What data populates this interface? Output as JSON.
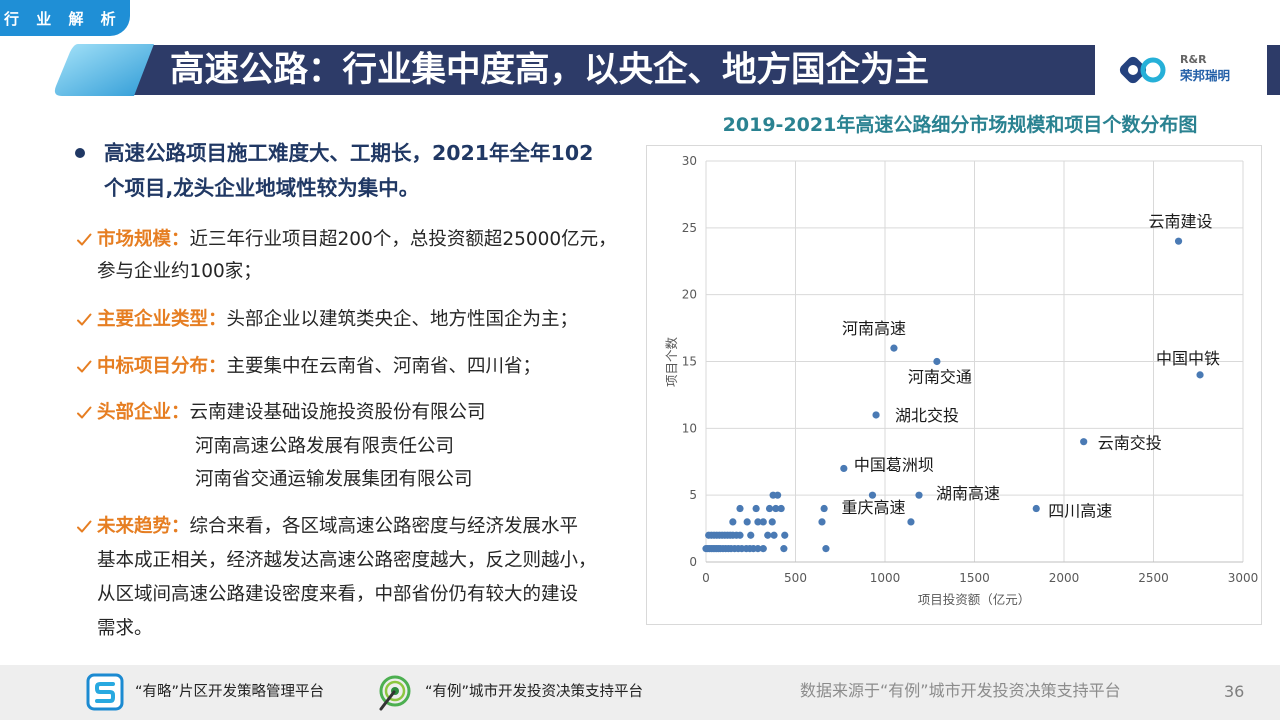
{
  "header": {
    "section_tag": "行 业 解 析",
    "title": "高速公路：行业集中度高，以央企、地方国企为主",
    "logo": {
      "en": "R&R",
      "cn": "荣邦瑞明",
      "icon": "rr-logo-icon"
    }
  },
  "summary": {
    "icon": "bullet-dot-icon",
    "lines": [
      "高速公路项目施工难度大、工期长，2021年全年102",
      "个项目,龙头企业地域性较为集中。"
    ]
  },
  "items": [
    {
      "icon": "check-icon",
      "label": "市场规模：",
      "lines": [
        "近三年行业项目超200个，总投资额超25000亿元，",
        "参与企业约100家；"
      ]
    },
    {
      "icon": "check-icon",
      "label": "主要企业类型：",
      "lines": [
        "头部企业以建筑类央企、地方性国企为主；"
      ]
    },
    {
      "icon": "check-icon",
      "label": "中标项目分布：",
      "lines": [
        "主要集中在云南省、河南省、四川省；"
      ]
    },
    {
      "icon": "check-icon",
      "label": "头部企业：",
      "lines": [
        "云南建设基础设施投资股份有限公司",
        "河南高速公路发展有限责任公司",
        "河南省交通运输发展集团有限公司"
      ]
    },
    {
      "icon": "check-icon",
      "label": "未来趋势：",
      "lines": [
        "综合来看，各区域高速公路密度与经济发展水平",
        "基本成正相关，经济越发达高速公路密度越大，反之则越小，",
        "从区域间高速公路建设密度来看，中部省份仍有较大的建设",
        "需求。"
      ]
    }
  ],
  "chart_data": {
    "type": "scatter",
    "title": "2019-2021年高速公路细分市场规模和项目个数分布图",
    "xlabel": "项目投资额（亿元）",
    "ylabel": "项目个数",
    "xlim": [
      0,
      3000
    ],
    "ylim": [
      0,
      30
    ],
    "xticks": [
      0,
      500,
      1000,
      1500,
      2000,
      2500,
      3000
    ],
    "yticks": [
      0,
      5,
      10,
      15,
      20,
      25,
      30
    ],
    "grid": true,
    "marker_color": "#4a7ab4",
    "points": [
      {
        "x": 2640,
        "y": 24,
        "label": "云南建设"
      },
      {
        "x": 1050,
        "y": 16,
        "label": "河南高速"
      },
      {
        "x": 1290,
        "y": 15,
        "label": "河南交通"
      },
      {
        "x": 2760,
        "y": 14,
        "label": "中国中铁"
      },
      {
        "x": 950,
        "y": 11,
        "label": "湖北交投"
      },
      {
        "x": 2110,
        "y": 9,
        "label": "云南交投"
      },
      {
        "x": 770,
        "y": 7,
        "label": "中国葛洲坝"
      },
      {
        "x": 930,
        "y": 5,
        "label": "重庆高速"
      },
      {
        "x": 1190,
        "y": 5,
        "label": "湖南高速"
      },
      {
        "x": 1845,
        "y": 4,
        "label": "四川高速"
      },
      {
        "x": 1145,
        "y": 3
      },
      {
        "x": 660,
        "y": 4
      },
      {
        "x": 648,
        "y": 3
      },
      {
        "x": 670,
        "y": 1
      },
      {
        "x": 375,
        "y": 5
      },
      {
        "x": 400,
        "y": 5
      },
      {
        "x": 190,
        "y": 4
      },
      {
        "x": 280,
        "y": 4
      },
      {
        "x": 355,
        "y": 4
      },
      {
        "x": 390,
        "y": 4
      },
      {
        "x": 420,
        "y": 4
      },
      {
        "x": 150,
        "y": 3
      },
      {
        "x": 230,
        "y": 3
      },
      {
        "x": 290,
        "y": 3
      },
      {
        "x": 320,
        "y": 3
      },
      {
        "x": 370,
        "y": 3
      },
      {
        "x": 15,
        "y": 2
      },
      {
        "x": 30,
        "y": 2
      },
      {
        "x": 45,
        "y": 2
      },
      {
        "x": 60,
        "y": 2
      },
      {
        "x": 75,
        "y": 2
      },
      {
        "x": 90,
        "y": 2
      },
      {
        "x": 105,
        "y": 2
      },
      {
        "x": 120,
        "y": 2
      },
      {
        "x": 135,
        "y": 2
      },
      {
        "x": 150,
        "y": 2
      },
      {
        "x": 170,
        "y": 2
      },
      {
        "x": 190,
        "y": 2
      },
      {
        "x": 250,
        "y": 2
      },
      {
        "x": 345,
        "y": 2
      },
      {
        "x": 380,
        "y": 2
      },
      {
        "x": 440,
        "y": 2
      },
      {
        "x": 0,
        "y": 1
      },
      {
        "x": 10,
        "y": 1
      },
      {
        "x": 20,
        "y": 1
      },
      {
        "x": 30,
        "y": 1
      },
      {
        "x": 40,
        "y": 1
      },
      {
        "x": 50,
        "y": 1
      },
      {
        "x": 60,
        "y": 1
      },
      {
        "x": 70,
        "y": 1
      },
      {
        "x": 80,
        "y": 1
      },
      {
        "x": 95,
        "y": 1
      },
      {
        "x": 110,
        "y": 1
      },
      {
        "x": 125,
        "y": 1
      },
      {
        "x": 140,
        "y": 1
      },
      {
        "x": 160,
        "y": 1
      },
      {
        "x": 180,
        "y": 1
      },
      {
        "x": 200,
        "y": 1
      },
      {
        "x": 225,
        "y": 1
      },
      {
        "x": 245,
        "y": 1
      },
      {
        "x": 265,
        "y": 1
      },
      {
        "x": 290,
        "y": 1
      },
      {
        "x": 320,
        "y": 1
      },
      {
        "x": 435,
        "y": 1
      }
    ]
  },
  "footer": {
    "platforms": [
      {
        "name": "“有略”片区开发策略管理平台",
        "icon": "youlue-s-icon"
      },
      {
        "name": "“有例”城市开发投资决策支持平台",
        "icon": "youli-target-icon"
      }
    ],
    "source": "数据来源于“有例”城市开发投资决策支持平台",
    "page_number": "36"
  },
  "colors": {
    "section_tag": "#1f8fd6",
    "title_bar": "#2d3b68",
    "lead_text": "#203864",
    "accent_orange": "#e67e22",
    "chart_title": "#2a8291",
    "marker": "#4a7ab4"
  }
}
